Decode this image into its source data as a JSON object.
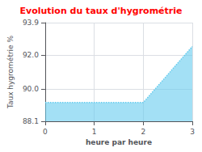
{
  "chart_data": {
    "type": "area",
    "title": "Evolution du taux d'hygrométrie",
    "xlabel": "heure par heure",
    "ylabel": "Taux hygrométrie %",
    "x": [
      0,
      2,
      3
    ],
    "values": [
      89.2,
      89.2,
      92.5
    ],
    "color": "#66ccee",
    "line_style": "dotted",
    "xlim": [
      0,
      3
    ],
    "xticks": [
      0,
      1,
      2,
      3
    ],
    "ylim": [
      88.1,
      93.9
    ],
    "yticks": [
      88.1,
      {
        "value": 90,
        "label": "90.0"
      },
      {
        "value": 92,
        "label": "92.0"
      },
      93.9
    ],
    "grid": true
  }
}
